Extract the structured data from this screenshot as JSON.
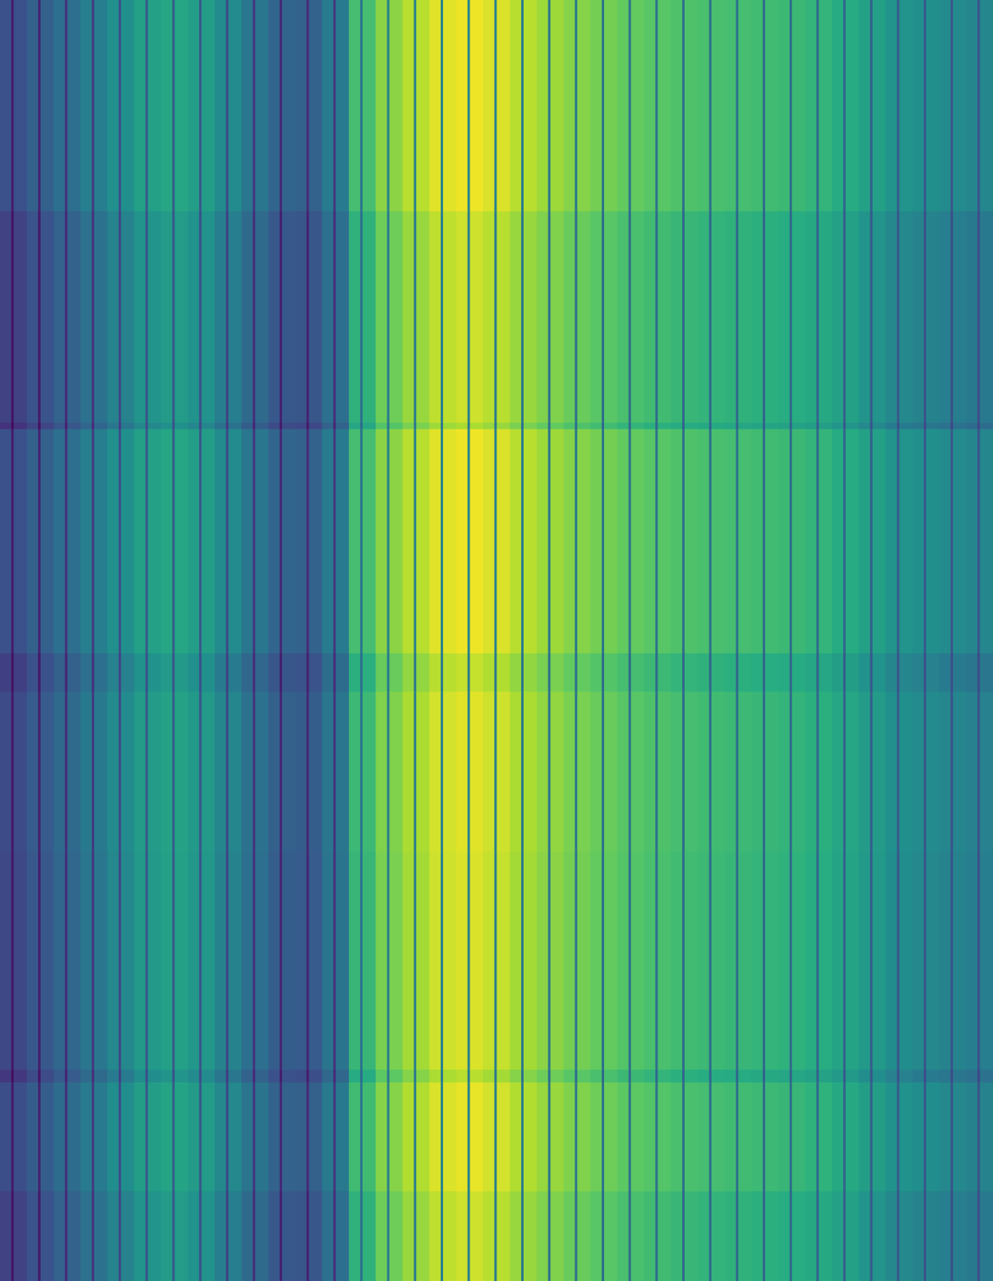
{
  "chart_data": {
    "type": "heatmap",
    "colormap": "viridis",
    "value_range": [
      0,
      1
    ],
    "grid": false,
    "legend": "none",
    "title": "",
    "xlabel": "",
    "ylabel": "",
    "n_columns": 37,
    "column_values": [
      0.25,
      0.31,
      0.37,
      0.43,
      0.5,
      0.57,
      0.6,
      0.56,
      0.48,
      0.4,
      0.33,
      0.32,
      0.42,
      0.7,
      0.83,
      0.9,
      0.96,
      0.98,
      0.95,
      0.9,
      0.86,
      0.82,
      0.79,
      0.76,
      0.74,
      0.72,
      0.71,
      0.7,
      0.69,
      0.68,
      0.66,
      0.62,
      0.57,
      0.52,
      0.5,
      0.48,
      0.46
    ],
    "separator_values": [
      0.08,
      0.1,
      0.14,
      0.18,
      0.24,
      0.28,
      0.3,
      0.28,
      0.22,
      0.16,
      0.12,
      0.12,
      0.16,
      0.4,
      0.44,
      0.44,
      0.45,
      0.45,
      0.44,
      0.42,
      0.4,
      0.4,
      0.39,
      0.38,
      0.38,
      0.37,
      0.37,
      0.37,
      0.36,
      0.36,
      0.35,
      0.33,
      0.31,
      0.29,
      0.28,
      0.27,
      0.26
    ],
    "row_bands": [
      {
        "from": 0.0,
        "to": 0.165,
        "offset": 0.0
      },
      {
        "from": 0.165,
        "to": 0.33,
        "offset": -0.05
      },
      {
        "from": 0.33,
        "to": 0.335,
        "offset": -0.1
      },
      {
        "from": 0.335,
        "to": 0.51,
        "offset": 0.0
      },
      {
        "from": 0.51,
        "to": 0.54,
        "offset": -0.06
      },
      {
        "from": 0.54,
        "to": 0.665,
        "offset": -0.02
      },
      {
        "from": 0.665,
        "to": 0.835,
        "offset": -0.03
      },
      {
        "from": 0.835,
        "to": 0.845,
        "offset": -0.08
      },
      {
        "from": 0.845,
        "to": 0.93,
        "offset": -0.01
      },
      {
        "from": 0.93,
        "to": 1.0,
        "offset": -0.05
      }
    ]
  }
}
